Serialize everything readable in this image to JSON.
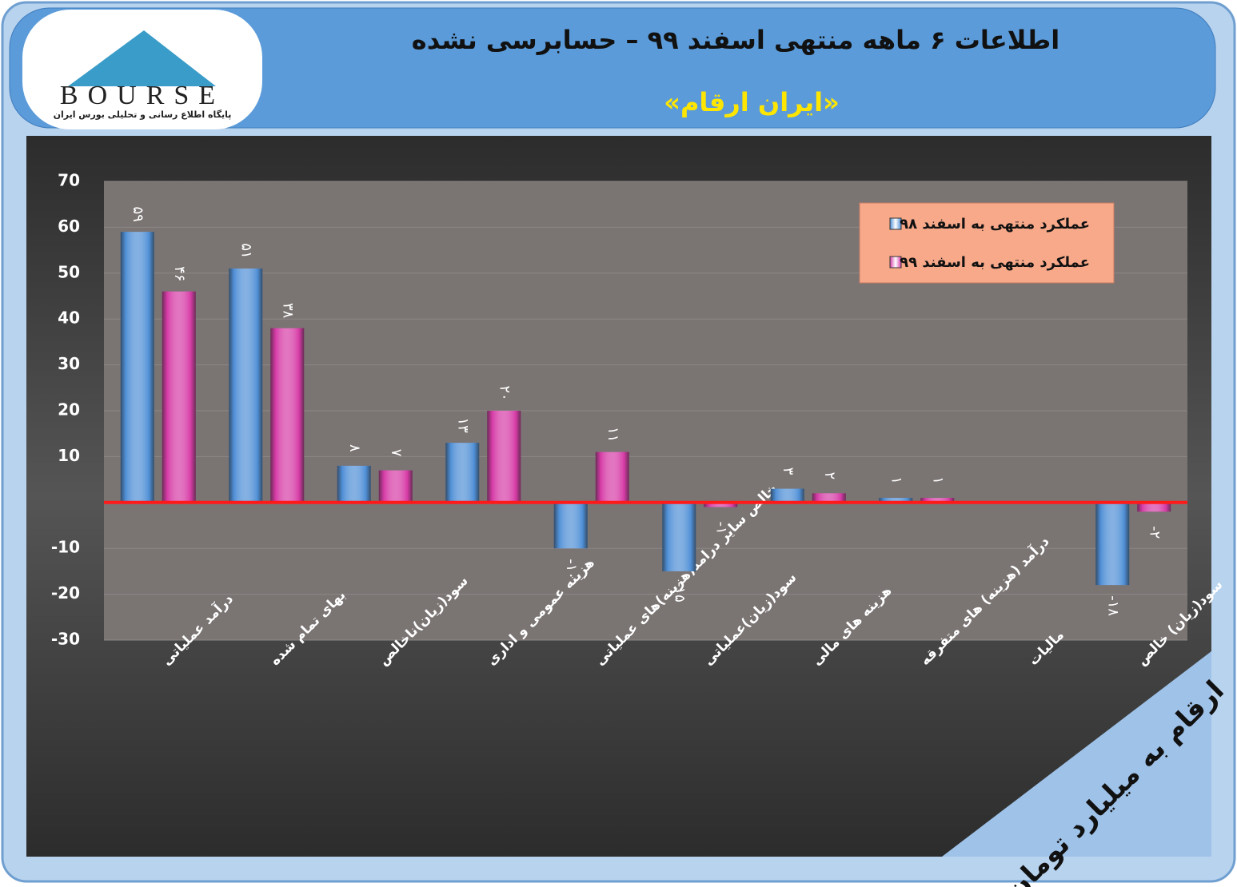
{
  "logo": {
    "text": "BOURSE",
    "caption": "پایگاه اطلاع رسانی و تحلیلی بورس ایران"
  },
  "chart_data": {
    "type": "bar",
    "title": "اطلاعات ۶ ماهه منتهی اسفند ۹۹ – حسابرسی نشده",
    "subtitle": "«ایران ارقام»",
    "annotation": "ارقام به میلیارد تومان",
    "categories": [
      "درآمد عملیاتی",
      "بهای تمام شده",
      "سود(زیان)ناخالص",
      "هزینه عمومی و اداری",
      "خالص سایر درامد(هزینه)های عملیاتی",
      "سود(زیان)عملیاتی",
      "هزینه های مالی",
      "درآمد (هزینه) های متفرقه",
      "مالیات",
      "سود(زیان) خالص"
    ],
    "series": [
      {
        "name": "عملکرد منتهی به اسفند ۹۸",
        "color": "#4f8fd6",
        "values": [
          59,
          51,
          8,
          13,
          -10,
          -15,
          3,
          1,
          null,
          -18
        ],
        "value_labels": [
          "۵۹",
          "۵۱",
          "۸",
          "۱۳",
          "-۱۰",
          "-۱۵",
          "۳",
          "۱",
          null,
          "-۱۸"
        ]
      },
      {
        "name": "عملکرد منتهی به اسفند ۹۹",
        "color": "#d63ba6",
        "values": [
          46,
          38,
          7,
          20,
          11,
          -1,
          2,
          1,
          null,
          -2
        ],
        "value_labels": [
          "۴۶",
          "۳۸",
          "۷",
          "۲۰",
          "۱۱",
          "-۱",
          "۲",
          "۱",
          null,
          "-۲"
        ]
      }
    ],
    "ylim": [
      -30,
      70
    ],
    "yticks": [
      70,
      60,
      50,
      40,
      30,
      20,
      10,
      -10,
      -20,
      -30
    ],
    "grid": true,
    "zero_line_color": "#ff1a1a",
    "legend": "top-right"
  }
}
